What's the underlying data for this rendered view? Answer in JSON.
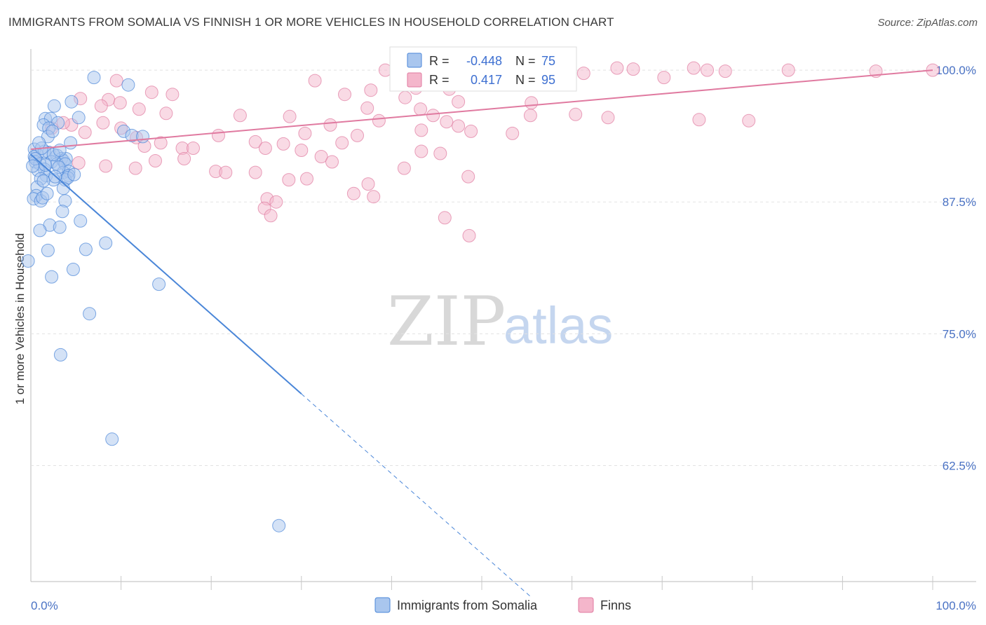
{
  "title": "IMMIGRANTS FROM SOMALIA VS FINNISH 1 OR MORE VEHICLES IN HOUSEHOLD CORRELATION CHART",
  "source": "Source: ZipAtlas.com",
  "watermark": {
    "zip": "ZIP",
    "atlas": "atlas"
  },
  "colors": {
    "blue": "#4a86d8",
    "blue_fill": "#a9c6ee",
    "pink": "#e07aa0",
    "pink_fill": "#f4b6cb",
    "tick_text": "#4a72c4"
  },
  "legend": {
    "r_label": "R =",
    "n_label": "N =",
    "rows": [
      {
        "r": "-0.448",
        "n": "75"
      },
      {
        "r": "0.417",
        "n": "95"
      }
    ]
  },
  "chart_data": {
    "type": "scatter",
    "title": "IMMIGRANTS FROM SOMALIA VS FINNISH 1 OR MORE VEHICLES IN HOUSEHOLD CORRELATION CHART",
    "xlabel": "",
    "ylabel": "1 or more Vehicles in Household",
    "xlim": [
      0,
      100
    ],
    "ylim": [
      51.5,
      102
    ],
    "x_tick_labels": [
      "0.0%",
      "100.0%"
    ],
    "y_ticks": [
      {
        "value": 100,
        "label": "100.0%"
      },
      {
        "value": 87.5,
        "label": "87.5%"
      },
      {
        "value": 75,
        "label": "75.0%"
      },
      {
        "value": 62.5,
        "label": "62.5%"
      }
    ],
    "grid": "horizontal dashed",
    "legend_position": "top-center",
    "series": [
      {
        "name": "Immigrants from Somalia",
        "color": "#4a86d8",
        "trend": {
          "x0": 0,
          "y0": 92.0,
          "x1": 30,
          "y1": 69.3,
          "dashed_to_x": 55.5
        },
        "points": [
          [
            7.0,
            99.3
          ],
          [
            10.8,
            98.6
          ],
          [
            4.5,
            97.0
          ],
          [
            2.6,
            96.6
          ],
          [
            1.6,
            95.4
          ],
          [
            2.2,
            95.4
          ],
          [
            5.3,
            95.5
          ],
          [
            3.0,
            95.0
          ],
          [
            1.4,
            94.8
          ],
          [
            2.0,
            94.5
          ],
          [
            10.3,
            94.2
          ],
          [
            11.2,
            93.8
          ],
          [
            12.4,
            93.7
          ],
          [
            1.9,
            93.7
          ],
          [
            0.4,
            92.5
          ],
          [
            2.0,
            92.2
          ],
          [
            0.7,
            92.0
          ],
          [
            0.4,
            91.8
          ],
          [
            1.5,
            92.3
          ],
          [
            2.9,
            91.9
          ],
          [
            3.4,
            91.6
          ],
          [
            3.6,
            91.4
          ],
          [
            3.9,
            91.6
          ],
          [
            0.5,
            91.3
          ],
          [
            1.0,
            91.1
          ],
          [
            2.3,
            91.3
          ],
          [
            2.9,
            91.1
          ],
          [
            3.8,
            91.1
          ],
          [
            1.5,
            90.6
          ],
          [
            3.6,
            90.3
          ],
          [
            4.2,
            90.4
          ],
          [
            4.2,
            90.0
          ],
          [
            3.8,
            89.6
          ],
          [
            1.7,
            90.0
          ],
          [
            4.1,
            89.8
          ],
          [
            0.8,
            90.5
          ],
          [
            1.1,
            89.7
          ],
          [
            2.5,
            89.6
          ],
          [
            0.7,
            88.9
          ],
          [
            1.4,
            89.5
          ],
          [
            0.6,
            88.1
          ],
          [
            0.3,
            87.8
          ],
          [
            1.1,
            87.6
          ],
          [
            1.3,
            87.9
          ],
          [
            3.8,
            87.6
          ],
          [
            3.6,
            88.8
          ],
          [
            3.5,
            86.6
          ],
          [
            5.5,
            85.7
          ],
          [
            2.1,
            85.3
          ],
          [
            3.2,
            85.1
          ],
          [
            1.0,
            84.8
          ],
          [
            8.3,
            83.6
          ],
          [
            1.9,
            82.9
          ],
          [
            6.1,
            83.0
          ],
          [
            -0.3,
            81.9
          ],
          [
            4.7,
            81.1
          ],
          [
            2.3,
            80.4
          ],
          [
            14.2,
            79.7
          ],
          [
            6.5,
            76.9
          ],
          [
            3.3,
            73.0
          ],
          [
            9.0,
            65.0
          ],
          [
            27.5,
            56.8
          ],
          [
            2.5,
            92.0
          ],
          [
            1.2,
            92.6
          ],
          [
            3.1,
            90.8
          ],
          [
            4.8,
            90.1
          ],
          [
            0.9,
            93.1
          ],
          [
            2.4,
            94.2
          ],
          [
            1.8,
            88.3
          ],
          [
            2.7,
            89.9
          ],
          [
            0.5,
            91.6
          ],
          [
            3.2,
            92.4
          ],
          [
            1.6,
            91.0
          ],
          [
            4.4,
            93.1
          ],
          [
            0.2,
            90.9
          ]
        ]
      },
      {
        "name": "Finns",
        "color": "#e07aa0",
        "trend": {
          "x0": 0,
          "y0": 92.5,
          "x1": 100,
          "y1": 100.0
        },
        "points": [
          [
            9.5,
            99.0
          ],
          [
            31.5,
            99.0
          ],
          [
            39.3,
            100.0
          ],
          [
            40.8,
            99.2
          ],
          [
            44.2,
            98.7
          ],
          [
            47.5,
            99.5
          ],
          [
            52.2,
            99.7
          ],
          [
            56.8,
            99.6
          ],
          [
            61.3,
            99.7
          ],
          [
            65.0,
            100.2
          ],
          [
            66.8,
            100.1
          ],
          [
            70.2,
            99.3
          ],
          [
            73.5,
            100.2
          ],
          [
            75.0,
            100.0
          ],
          [
            77.0,
            99.9
          ],
          [
            84.0,
            100.0
          ],
          [
            93.7,
            99.9
          ],
          [
            100.0,
            100.0
          ],
          [
            37.7,
            98.1
          ],
          [
            42.7,
            98.3
          ],
          [
            34.8,
            97.7
          ],
          [
            41.5,
            97.4
          ],
          [
            43.2,
            96.3
          ],
          [
            46.4,
            98.2
          ],
          [
            47.4,
            97.0
          ],
          [
            53.0,
            99.0
          ],
          [
            55.5,
            96.9
          ],
          [
            13.4,
            97.9
          ],
          [
            15.7,
            97.7
          ],
          [
            8.6,
            97.2
          ],
          [
            5.5,
            97.3
          ],
          [
            9.9,
            96.9
          ],
          [
            7.8,
            96.6
          ],
          [
            12.0,
            96.3
          ],
          [
            15.0,
            95.9
          ],
          [
            23.2,
            95.7
          ],
          [
            28.7,
            95.6
          ],
          [
            37.3,
            96.4
          ],
          [
            44.6,
            95.7
          ],
          [
            46.1,
            95.1
          ],
          [
            47.4,
            94.7
          ],
          [
            48.8,
            94.2
          ],
          [
            53.4,
            94.0
          ],
          [
            55.4,
            95.7
          ],
          [
            60.4,
            95.8
          ],
          [
            64.0,
            95.5
          ],
          [
            74.1,
            95.3
          ],
          [
            79.6,
            95.2
          ],
          [
            4.5,
            94.8
          ],
          [
            2.3,
            94.5
          ],
          [
            3.6,
            95.0
          ],
          [
            6.0,
            94.1
          ],
          [
            8.0,
            95.0
          ],
          [
            10.0,
            94.5
          ],
          [
            11.7,
            93.6
          ],
          [
            12.6,
            92.8
          ],
          [
            14.4,
            93.1
          ],
          [
            16.8,
            92.6
          ],
          [
            18.0,
            92.6
          ],
          [
            20.8,
            93.8
          ],
          [
            24.9,
            93.2
          ],
          [
            26.0,
            92.6
          ],
          [
            28.0,
            93.0
          ],
          [
            30.4,
            94.0
          ],
          [
            33.2,
            94.8
          ],
          [
            34.5,
            93.1
          ],
          [
            36.2,
            93.8
          ],
          [
            38.6,
            95.2
          ],
          [
            30.0,
            92.4
          ],
          [
            32.2,
            91.8
          ],
          [
            33.4,
            91.3
          ],
          [
            17.0,
            91.6
          ],
          [
            13.8,
            91.4
          ],
          [
            11.6,
            90.7
          ],
          [
            8.3,
            90.9
          ],
          [
            5.3,
            91.2
          ],
          [
            20.5,
            90.4
          ],
          [
            21.6,
            90.3
          ],
          [
            24.9,
            90.3
          ],
          [
            28.6,
            89.6
          ],
          [
            30.6,
            89.7
          ],
          [
            37.4,
            89.2
          ],
          [
            35.8,
            88.3
          ],
          [
            26.2,
            87.8
          ],
          [
            27.2,
            87.5
          ],
          [
            25.9,
            86.9
          ],
          [
            26.6,
            86.2
          ],
          [
            38.0,
            88.0
          ],
          [
            43.3,
            94.3
          ],
          [
            48.5,
            89.9
          ],
          [
            45.4,
            92.1
          ],
          [
            41.4,
            90.7
          ],
          [
            43.3,
            92.3
          ],
          [
            45.9,
            86.0
          ],
          [
            48.6,
            84.3
          ]
        ]
      }
    ]
  },
  "bottom_legend": [
    "Immigrants from Somalia",
    "Finns"
  ]
}
